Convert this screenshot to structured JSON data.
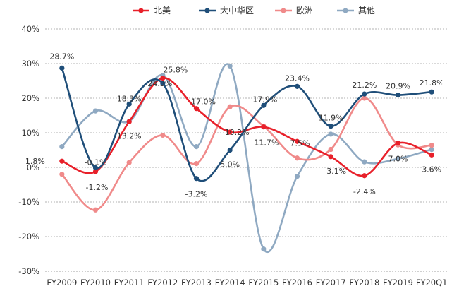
{
  "chart_data": {
    "type": "line",
    "title": "",
    "xlabel": "",
    "ylabel": "",
    "ylim": [
      -30,
      40
    ],
    "y_tick_step": 10,
    "y_tick_labels": [
      "40%",
      "30%",
      "20%",
      "10%",
      "0%",
      "-10%",
      "-20%",
      "-30%"
    ],
    "grid": "horizontal dotted",
    "legend": "top",
    "categories": [
      "FY2009",
      "FY2010",
      "FY2011",
      "FY2012",
      "FY2013",
      "FY2014",
      "FY2015",
      "FY2016",
      "FY2017",
      "FY2018",
      "FY2019",
      "FY20Q1"
    ],
    "series": [
      {
        "name": "北美",
        "color": "#e8202a",
        "values": [
          1.8,
          -1.2,
          13.2,
          25.8,
          17.0,
          10.2,
          11.7,
          7.5,
          3.1,
          -2.4,
          7.0,
          3.6
        ],
        "labels": [
          "1.8%",
          "-1.2%",
          "13.2%",
          "25.8%",
          "17.0%",
          "10.2%",
          "11.7%",
          "7.5%",
          "3.1%",
          "-2.4%",
          "7.0%",
          "3.6%"
        ]
      },
      {
        "name": "大中华区",
        "color": "#1f4e79",
        "values": [
          28.7,
          -0.1,
          18.3,
          24.3,
          -3.2,
          5.0,
          17.9,
          23.4,
          11.9,
          21.2,
          20.9,
          21.8
        ],
        "labels": [
          "28.7%",
          "-0.1%",
          "18.3%",
          "24.3%",
          "-3.2%",
          "5.0%",
          "17.9%",
          "23.4%",
          "11.9%",
          "21.2%",
          "20.9%",
          "21.8%"
        ]
      },
      {
        "name": "欧洲",
        "color": "#f08a8a",
        "values": [
          -2.0,
          -12.3,
          1.4,
          9.3,
          1.1,
          17.5,
          11.9,
          2.7,
          5.2,
          20.0,
          6.5,
          6.4
        ]
      },
      {
        "name": "其他",
        "color": "#8fa9c2",
        "values": [
          6.0,
          16.3,
          13.3,
          26.6,
          6.0,
          29.3,
          -23.6,
          -2.6,
          9.6,
          1.6,
          2.5,
          5.2
        ]
      }
    ]
  }
}
